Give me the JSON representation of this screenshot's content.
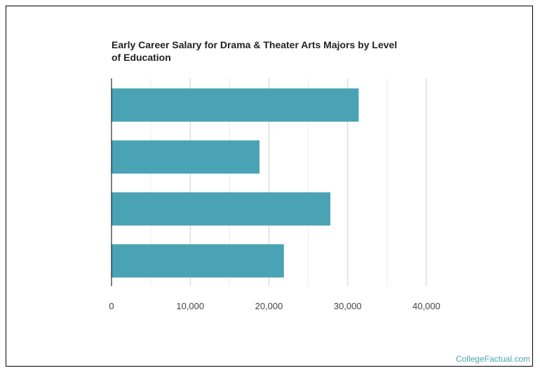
{
  "chart_data": {
    "type": "bar",
    "orientation": "horizontal",
    "title": "Early Career Salary for Drama & Theater Arts Majors by Level of Education",
    "categories": [
      "",
      "",
      "",
      ""
    ],
    "values": [
      31400,
      18800,
      27800,
      21900
    ],
    "xlim": [
      0,
      40000
    ],
    "xticks": [
      0,
      10000,
      20000,
      30000,
      40000
    ],
    "xtick_labels": [
      "0",
      "10,000",
      "20,000",
      "30,000",
      "40,000"
    ],
    "minor_gridlines": true,
    "bar_color": "#4aa3b4",
    "grid_color": "#d9d9d9"
  },
  "credit": "CollegeFactual.com"
}
